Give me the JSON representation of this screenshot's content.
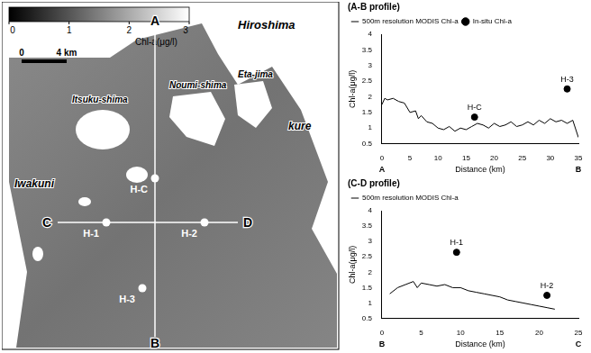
{
  "map": {
    "colorbar": {
      "title": "Chl-a(μg/l)",
      "range": [
        0,
        3
      ],
      "ticks": [
        0,
        1,
        2,
        3
      ]
    },
    "scale_bar": {
      "start": "0",
      "end": "4 km"
    },
    "place_names": [
      "Hiroshima",
      "Itsuku-shima",
      "Noumi-shima",
      "Eta-jima",
      "kure",
      "Iwakuni"
    ],
    "transect_ends": [
      "A",
      "B",
      "C",
      "D"
    ],
    "stations": [
      "H-C",
      "H-1",
      "H-2",
      "H-3"
    ]
  },
  "chart_data": [
    {
      "type": "line",
      "title": "(A-B profile)",
      "x_label": "Distance (km)",
      "y_label": "Chl-a(μg/l)",
      "xlim": [
        0,
        35
      ],
      "xticks": [
        0,
        5,
        10,
        15,
        20,
        25,
        30,
        35
      ],
      "ylim": [
        0.5,
        4
      ],
      "yticks": [
        0.5,
        1,
        1.5,
        2,
        2.5,
        3,
        3.5,
        4
      ],
      "grid": false,
      "legend": "top-left",
      "x_annotations": [
        {
          "value": 0,
          "label": "A"
        },
        {
          "value": 35,
          "label": "B"
        }
      ],
      "series": [
        {
          "name": "500m resolution MODIS Chl-a",
          "type": "line",
          "color": "#000000",
          "line_style": "solid",
          "x": [
            0,
            0.5,
            1,
            2,
            3,
            4,
            5,
            6,
            6.5,
            7,
            8,
            9,
            10,
            11,
            12,
            13,
            14,
            15,
            16,
            17,
            18,
            19,
            20,
            21,
            22,
            23,
            24,
            25,
            26,
            27,
            28,
            29,
            30,
            31,
            32,
            33,
            34,
            35
          ],
          "values": [
            1.75,
            1.95,
            1.9,
            1.95,
            1.85,
            1.8,
            1.5,
            1.55,
            1.3,
            1.4,
            1.2,
            1.15,
            1.0,
            0.95,
            1.05,
            0.9,
            1.0,
            0.95,
            1.05,
            1.15,
            1.1,
            1.0,
            1.15,
            1.05,
            1.1,
            1.2,
            1.05,
            1.1,
            1.2,
            1.1,
            1.25,
            1.15,
            1.3,
            1.2,
            1.25,
            1.15,
            1.25,
            0.7
          ]
        },
        {
          "name": "In-situ Chl-a",
          "type": "scatter",
          "color": "#000000",
          "marker": "circle",
          "x": [
            16.5,
            33
          ],
          "values": [
            1.35,
            2.25
          ],
          "point_labels": [
            "H-C",
            "H-3"
          ]
        }
      ]
    },
    {
      "type": "line",
      "title": "(C-D profile)",
      "x_label": "Distance (km)",
      "y_label": "Chl-a(μg/l)",
      "xlim": [
        0,
        25
      ],
      "xticks": [
        0,
        5,
        10,
        15,
        20,
        25
      ],
      "ylim": [
        0.5,
        4
      ],
      "yticks": [
        0.5,
        1,
        1.5,
        2,
        2.5,
        3,
        3.5,
        4
      ],
      "grid": false,
      "legend": "top-left",
      "x_annotations": [
        {
          "value": 0,
          "label": "B"
        },
        {
          "value": 25,
          "label": "C"
        }
      ],
      "series": [
        {
          "name": "500m resolution MODIS Chl-a",
          "type": "line",
          "color": "#000000",
          "line_style": "solid",
          "x": [
            1,
            2,
            3,
            4,
            4.5,
            5,
            6,
            7,
            8,
            9,
            10,
            11,
            12,
            13,
            14,
            15,
            16,
            17,
            18,
            19,
            20,
            21,
            22
          ],
          "values": [
            1.3,
            1.5,
            1.6,
            1.7,
            1.5,
            1.65,
            1.6,
            1.55,
            1.6,
            1.5,
            1.5,
            1.4,
            1.35,
            1.3,
            1.25,
            1.2,
            1.1,
            1.05,
            1.0,
            0.95,
            0.9,
            0.85,
            0.8
          ]
        },
        {
          "type": "scatter",
          "color": "#000000",
          "marker": "circle",
          "x": [
            9.5,
            21
          ],
          "values": [
            2.65,
            1.25
          ],
          "point_labels": [
            "H-1",
            "H-2"
          ]
        }
      ]
    }
  ]
}
